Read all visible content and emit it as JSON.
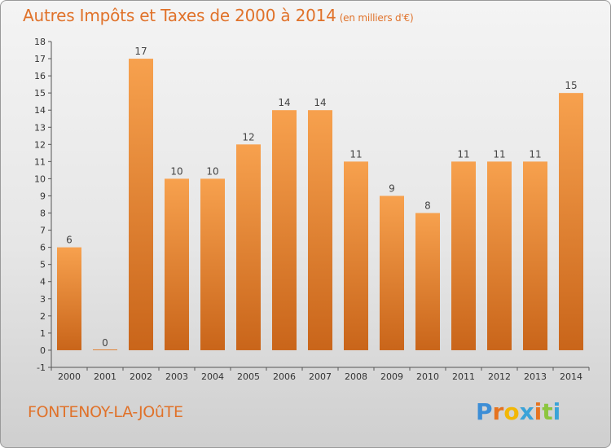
{
  "title": "Autres Impôts et Taxes de 2000 à 2014",
  "unit_note": "(en milliers d'€)",
  "commune": "FONTENOY-LA-JOûTE",
  "logo": {
    "text": "Proxiti",
    "letters": [
      "P",
      "r",
      "o",
      "x",
      "i",
      "t",
      "i"
    ],
    "colors": [
      "#3d8ed6",
      "#e6731f",
      "#f2b705",
      "#3ba3d8",
      "#e6731f",
      "#8cc63f",
      "#3ba3d8"
    ]
  },
  "colors": {
    "title": "#e0722a",
    "bar_top": "#f7a14e",
    "bar_bottom": "#c9651a",
    "axis": "#555555"
  },
  "chart_data": {
    "type": "bar",
    "title": "Autres Impôts et Taxes de 2000 à 2014",
    "subtitle": "(en milliers d'€)",
    "categories": [
      "2000",
      "2001",
      "2002",
      "2003",
      "2004",
      "2005",
      "2006",
      "2007",
      "2008",
      "2009",
      "2010",
      "2011",
      "2012",
      "2013",
      "2014"
    ],
    "values": [
      6,
      0,
      17,
      10,
      10,
      12,
      14,
      14,
      11,
      9,
      8,
      11,
      11,
      11,
      15
    ],
    "ylim": [
      -1,
      18
    ],
    "yticks": [
      -1,
      0,
      1,
      2,
      3,
      4,
      5,
      6,
      7,
      8,
      9,
      10,
      11,
      12,
      13,
      14,
      15,
      16,
      17,
      18
    ],
    "grid": false,
    "legend": "none"
  }
}
